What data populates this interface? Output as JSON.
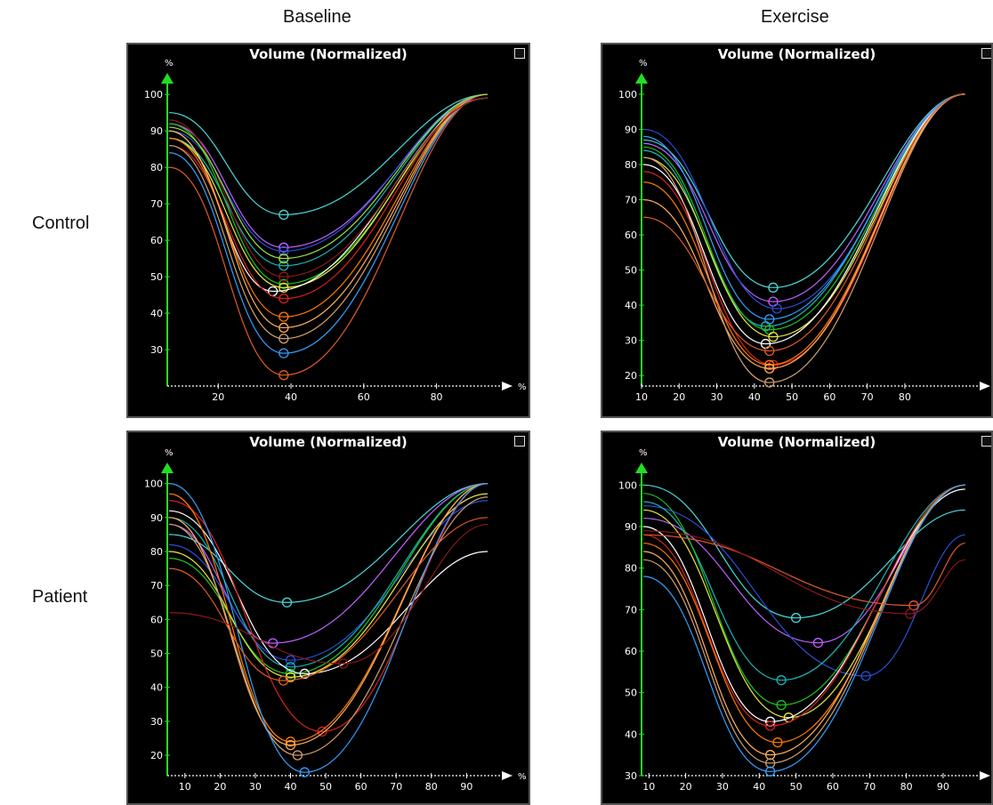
{
  "column_labels": [
    "Baseline",
    "Exercise"
  ],
  "row_labels": [
    "Control",
    "Patient"
  ],
  "colors": {
    "background": "#000000",
    "axis": "#22dd22",
    "xaxis": "#ffffff",
    "title": "#ffffff",
    "palette": [
      "#4ad9d9",
      "#c060ff",
      "#2a4fd8",
      "#19b5b5",
      "#22c022",
      "#e8e840",
      "#ffffff",
      "#d82020",
      "#ff7a00",
      "#ffb060",
      "#d0a070",
      "#33a0ff",
      "#e05a2a",
      "#8a1818",
      "#9fe040",
      "#f0f0a0",
      "#a07050",
      "#7070ff"
    ]
  },
  "chart_data": [
    {
      "type": "line",
      "title": "Volume (Normalized)",
      "row": "Control",
      "column": "Baseline",
      "xlabel": "%",
      "ylabel": "%",
      "xlim": [
        6,
        96
      ],
      "ylim": [
        20,
        102
      ],
      "xticks": [
        20,
        40,
        60,
        80
      ],
      "yticks": [
        30,
        40,
        50,
        60,
        70,
        80,
        90,
        100
      ],
      "series": [
        {
          "min": [
            38,
            67
          ],
          "start": 95,
          "end": 100
        },
        {
          "min": [
            38,
            58
          ],
          "start": 92,
          "end": 99
        },
        {
          "min": [
            38,
            57
          ],
          "start": 90,
          "end": 100
        },
        {
          "min": [
            38,
            53
          ],
          "start": 88,
          "end": 100
        },
        {
          "min": [
            38,
            48
          ],
          "start": 92,
          "end": 99
        },
        {
          "min": [
            38,
            47
          ],
          "start": 88,
          "end": 100
        },
        {
          "min": [
            35,
            46
          ],
          "start": 90,
          "end": 99
        },
        {
          "min": [
            38,
            44
          ],
          "start": 86,
          "end": 100
        },
        {
          "min": [
            38,
            39
          ],
          "start": 88,
          "end": 100
        },
        {
          "min": [
            38,
            36
          ],
          "start": 90,
          "end": 100
        },
        {
          "min": [
            38,
            33
          ],
          "start": 86,
          "end": 100
        },
        {
          "min": [
            38,
            29
          ],
          "start": 84,
          "end": 100
        },
        {
          "min": [
            38,
            23
          ],
          "start": 80,
          "end": 100
        },
        {
          "min": [
            38,
            50
          ],
          "start": 93,
          "end": 99
        },
        {
          "min": [
            38,
            55
          ],
          "start": 91,
          "end": 100
        }
      ]
    },
    {
      "type": "line",
      "title": "Volume (Normalized)",
      "row": "Control",
      "column": "Exercise",
      "xlabel": "%",
      "ylabel": "%",
      "xlim": [
        10,
        98
      ],
      "ylim": [
        17,
        102
      ],
      "xticks": [
        10,
        20,
        30,
        40,
        50,
        60,
        70,
        80
      ],
      "yticks": [
        20,
        30,
        40,
        50,
        60,
        70,
        80,
        90,
        100
      ],
      "series": [
        {
          "min": [
            45,
            45
          ],
          "start": 87,
          "end": 100
        },
        {
          "min": [
            45,
            41
          ],
          "start": 86,
          "end": 100
        },
        {
          "min": [
            46,
            39
          ],
          "start": 90,
          "end": 100
        },
        {
          "min": [
            43,
            34
          ],
          "start": 84,
          "end": 100
        },
        {
          "min": [
            44,
            33
          ],
          "start": 85,
          "end": 100
        },
        {
          "min": [
            45,
            31
          ],
          "start": 82,
          "end": 100
        },
        {
          "min": [
            43,
            29
          ],
          "start": 80,
          "end": 100
        },
        {
          "min": [
            45,
            23
          ],
          "start": 78,
          "end": 100
        },
        {
          "min": [
            44,
            23
          ],
          "start": 75,
          "end": 100
        },
        {
          "min": [
            44,
            22
          ],
          "start": 70,
          "end": 100
        },
        {
          "min": [
            44,
            18
          ],
          "start": 82,
          "end": 100
        },
        {
          "min": [
            44,
            36
          ],
          "start": 88,
          "end": 100
        },
        {
          "min": [
            44,
            27
          ],
          "start": 65,
          "end": 100
        }
      ]
    },
    {
      "type": "line",
      "title": "Volume (Normalized)",
      "row": "Patient",
      "column": "Baseline",
      "xlabel": "%",
      "ylabel": "%",
      "xlim": [
        5,
        98
      ],
      "ylim": [
        14,
        102
      ],
      "xticks": [
        10,
        20,
        30,
        40,
        50,
        60,
        70,
        80,
        90
      ],
      "yticks": [
        20,
        30,
        40,
        50,
        60,
        70,
        80,
        90,
        100
      ],
      "series": [
        {
          "min": [
            39,
            65
          ],
          "start": 85,
          "end": 100
        },
        {
          "min": [
            35,
            53
          ],
          "start": 88,
          "end": 100
        },
        {
          "min": [
            40,
            48
          ],
          "start": 82,
          "end": 95
        },
        {
          "min": [
            40,
            46
          ],
          "start": 90,
          "end": 100
        },
        {
          "min": [
            40,
            44
          ],
          "start": 78,
          "end": 100
        },
        {
          "min": [
            40,
            43
          ],
          "start": 80,
          "end": 97
        },
        {
          "min": [
            44,
            44
          ],
          "start": 92,
          "end": 80
        },
        {
          "min": [
            49,
            27
          ],
          "start": 95,
          "end": 100
        },
        {
          "min": [
            40,
            24
          ],
          "start": 97,
          "end": 100
        },
        {
          "min": [
            40,
            23
          ],
          "start": 90,
          "end": 100
        },
        {
          "min": [
            42,
            20
          ],
          "start": 88,
          "end": 96
        },
        {
          "min": [
            44,
            15
          ],
          "start": 100,
          "end": 100
        },
        {
          "min": [
            38,
            42
          ],
          "start": 75,
          "end": 90
        },
        {
          "min": [
            55,
            47
          ],
          "start": 62,
          "end": 88
        }
      ]
    },
    {
      "type": "line",
      "title": "Volume (Normalized)",
      "row": "Patient",
      "column": "Exercise",
      "xlabel": "%",
      "ylabel": "%",
      "xlim": [
        8,
        98
      ],
      "ylim": [
        30,
        102
      ],
      "xticks": [
        10,
        20,
        30,
        40,
        50,
        60,
        70,
        80,
        90
      ],
      "yticks": [
        30,
        40,
        50,
        60,
        70,
        80,
        90,
        100
      ],
      "series": [
        {
          "min": [
            50,
            68
          ],
          "start": 100,
          "end": 94
        },
        {
          "min": [
            56,
            62
          ],
          "start": 92,
          "end": 100
        },
        {
          "min": [
            69,
            54
          ],
          "start": 95,
          "end": 88
        },
        {
          "min": [
            46,
            53
          ],
          "start": 96,
          "end": 100
        },
        {
          "min": [
            46,
            47
          ],
          "start": 98,
          "end": 100
        },
        {
          "min": [
            48,
            44
          ],
          "start": 94,
          "end": 100
        },
        {
          "min": [
            43,
            43
          ],
          "start": 90,
          "end": 99
        },
        {
          "min": [
            43,
            42
          ],
          "start": 88,
          "end": 100
        },
        {
          "min": [
            45,
            38
          ],
          "start": 86,
          "end": 100
        },
        {
          "min": [
            43,
            35
          ],
          "start": 84,
          "end": 100
        },
        {
          "min": [
            43,
            33
          ],
          "start": 82,
          "end": 100
        },
        {
          "min": [
            43,
            31
          ],
          "start": 78,
          "end": 100
        },
        {
          "min": [
            82,
            71
          ],
          "start": 88,
          "end": 86
        },
        {
          "min": [
            81,
            69
          ],
          "start": 89,
          "end": 82
        }
      ]
    }
  ]
}
